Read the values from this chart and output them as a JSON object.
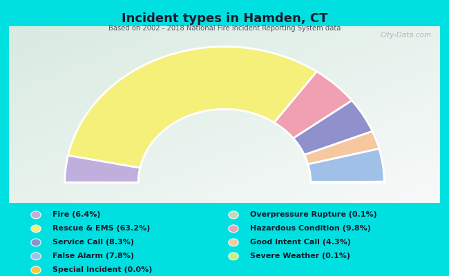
{
  "title": "Incident types in Hamden, CT",
  "subtitle": "Based on 2002 - 2018 National Fire Incident Reporting System data",
  "background_outer": "#00e0e0",
  "watermark": "City-Data.com",
  "draw_order": [
    {
      "label": "Fire",
      "pct": 6.4,
      "color": "#c0aedd"
    },
    {
      "label": "Rescue & EMS",
      "pct": 63.2,
      "color": "#f5f07a"
    },
    {
      "label": "Hazardous Condition",
      "pct": 9.8,
      "color": "#f0a0b0"
    },
    {
      "label": "Service Call",
      "pct": 8.3,
      "color": "#9090cc"
    },
    {
      "label": "Good Intent Call",
      "pct": 4.3,
      "color": "#f5c8a0"
    },
    {
      "label": "False Alarm",
      "pct": 7.8,
      "color": "#a0c0e8"
    },
    {
      "label": "Overpressure Rupture",
      "pct": 0.1,
      "color": "#c8d8b0"
    },
    {
      "label": "Severe Weather",
      "pct": 0.1,
      "color": "#ccf080"
    },
    {
      "label": "Special Incident",
      "pct": 0.0,
      "color": "#f5c842"
    }
  ],
  "legend_left": [
    {
      "label": "Fire (6.4%)",
      "color": "#c0aedd"
    },
    {
      "label": "Rescue & EMS (63.2%)",
      "color": "#f5f07a"
    },
    {
      "label": "Service Call (8.3%)",
      "color": "#9090cc"
    },
    {
      "label": "False Alarm (7.8%)",
      "color": "#a0c0e8"
    },
    {
      "label": "Special Incident (0.0%)",
      "color": "#f5c842"
    }
  ],
  "legend_right": [
    {
      "label": "Overpressure Rupture (0.1%)",
      "color": "#c8d8b0"
    },
    {
      "label": "Hazardous Condition (9.8%)",
      "color": "#f0a0b0"
    },
    {
      "label": "Good Intent Call (4.3%)",
      "color": "#f5c8a0"
    },
    {
      "label": "Severe Weather (0.1%)",
      "color": "#ccf080"
    }
  ],
  "outer_r": 1.0,
  "inner_r": 0.54,
  "chart_xlim": [
    -1.35,
    1.35
  ],
  "chart_ylim": [
    -0.15,
    1.15
  ]
}
